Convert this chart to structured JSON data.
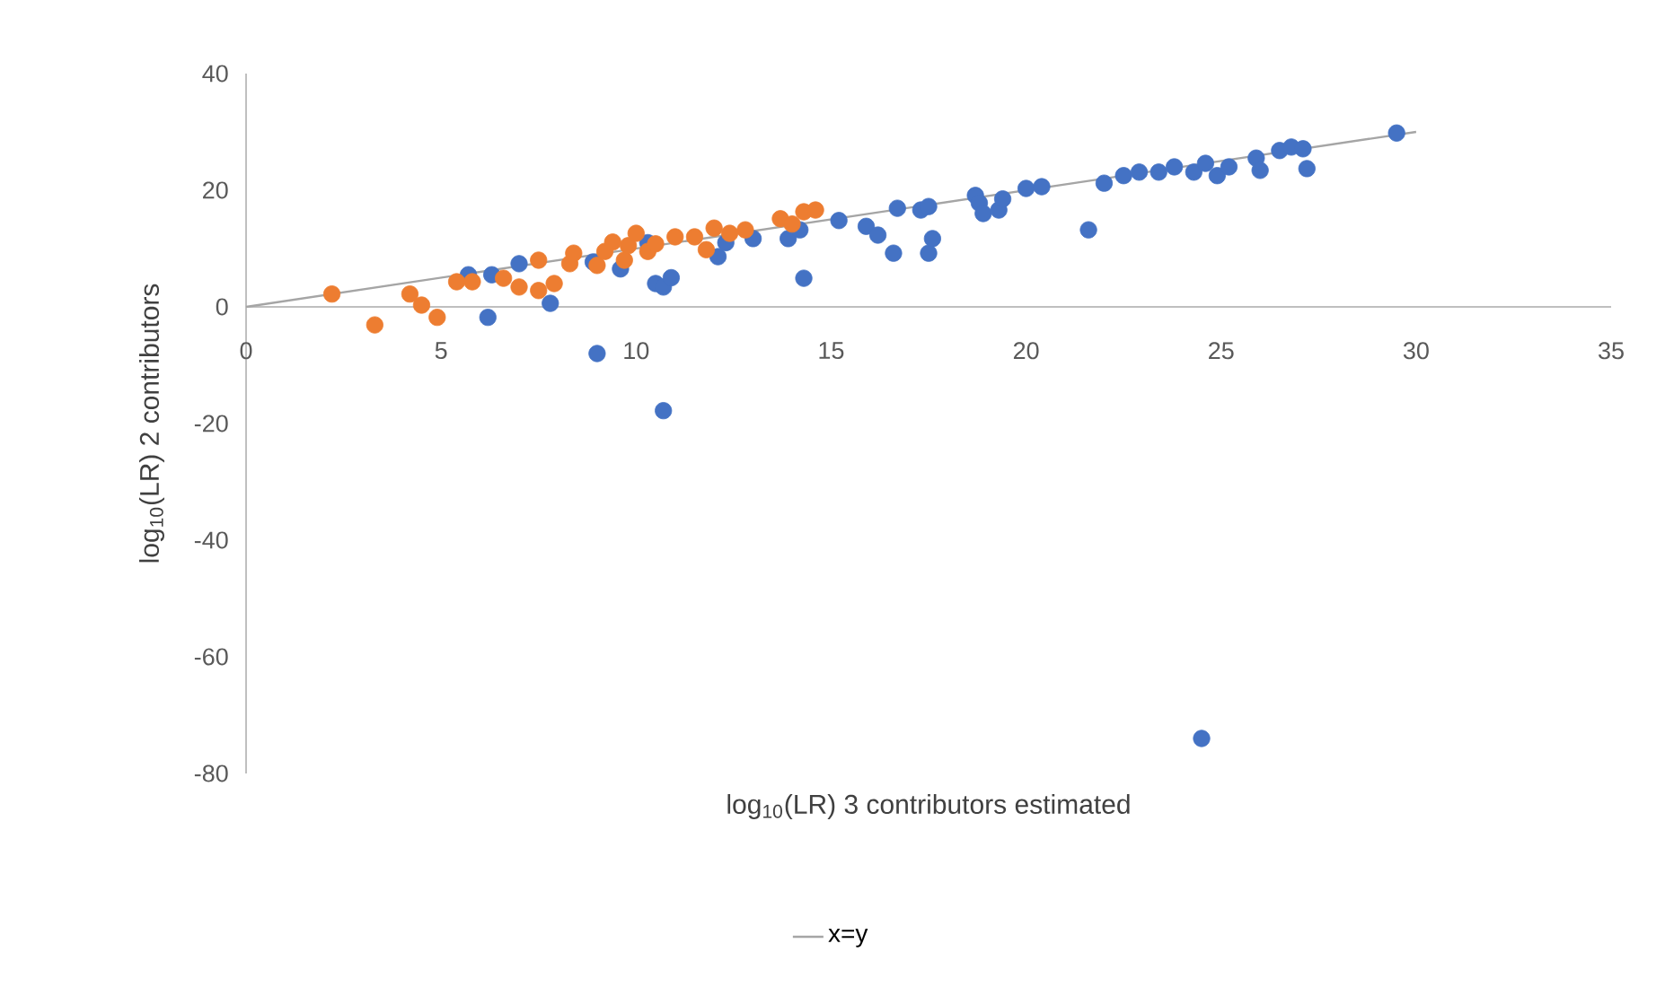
{
  "chart_data": {
    "type": "scatter",
    "xlabel": "log$_{10}$(LR) 3 contributors estimated",
    "ylabel": "log$_{10}$(LR) 2 contributors",
    "xlim": [
      0,
      35
    ],
    "ylim": [
      -80,
      40
    ],
    "xticks": [
      0,
      5,
      10,
      15,
      20,
      25,
      30,
      35
    ],
    "yticks": [
      -80,
      -60,
      -40,
      -20,
      0,
      20,
      40
    ],
    "grid": false,
    "legend": "bottom",
    "marker": "circle",
    "series": [
      {
        "color": "#4472c4",
        "x": [
          5.7,
          6.2,
          6.3,
          7.0,
          7.8,
          9.0,
          10.7,
          24.5,
          8.9,
          9.6,
          10.3,
          10.5,
          10.7,
          10.9,
          12.1,
          12.3,
          13.0,
          13.9,
          14.3,
          14.2,
          15.2,
          15.9,
          16.2,
          16.6,
          16.7,
          17.3,
          17.5,
          17.6,
          17.5,
          18.7,
          18.8,
          18.9,
          19.3,
          19.4,
          20.0,
          20.4,
          21.6,
          22.0,
          22.5,
          22.9,
          23.4,
          23.8,
          24.3,
          24.6,
          24.9,
          25.2,
          25.9,
          26.0,
          26.5,
          26.8,
          27.1,
          27.2,
          29.5
        ],
        "values": [
          5.5,
          -1.8,
          5.5,
          7.4,
          0.6,
          -8,
          -17.8,
          -74,
          7.7,
          6.5,
          11,
          4,
          3.4,
          5,
          8.6,
          11,
          11.7,
          11.7,
          4.9,
          13.2,
          14.8,
          13.8,
          12.3,
          9.2,
          16.9,
          16.6,
          9.2,
          11.7,
          17.2,
          19.1,
          17.8,
          16,
          16.6,
          18.5,
          20.3,
          20.6,
          13.2,
          21.2,
          22.5,
          23.1,
          23.1,
          24,
          23.1,
          24.6,
          22.5,
          24,
          25.5,
          23.4,
          26.8,
          27.4,
          27.1,
          23.7,
          29.8
        ]
      },
      {
        "color": "#ed7d31",
        "x": [
          2.2,
          3.3,
          4.2,
          4.5,
          4.9,
          5.4,
          5.8,
          6.6,
          7.0,
          7.5,
          7.5,
          7.9,
          8.3,
          8.4,
          9.0,
          9.2,
          9.7,
          9.8,
          10.3,
          10.5,
          11.0,
          11.5,
          11.8,
          12.0,
          12.4,
          12.8,
          13.7,
          14.0,
          14.3,
          14.6,
          9.4,
          10.0
        ],
        "values": [
          2.2,
          -3.1,
          2.2,
          0.3,
          -1.8,
          4.3,
          4.3,
          4.9,
          3.4,
          2.8,
          8,
          4,
          7.4,
          9.2,
          7.1,
          9.5,
          8,
          10.5,
          9.5,
          10.8,
          12,
          12,
          9.8,
          13.5,
          12.6,
          13.2,
          15.1,
          14.2,
          16.3,
          16.6,
          11.1,
          12.6
        ]
      },
      {
        "type": "line",
        "name": "x=y",
        "color": "#a5a5a5",
        "marker": "none",
        "line_style": "solid",
        "x": [
          0,
          30
        ],
        "values": [
          0,
          30
        ]
      }
    ]
  }
}
